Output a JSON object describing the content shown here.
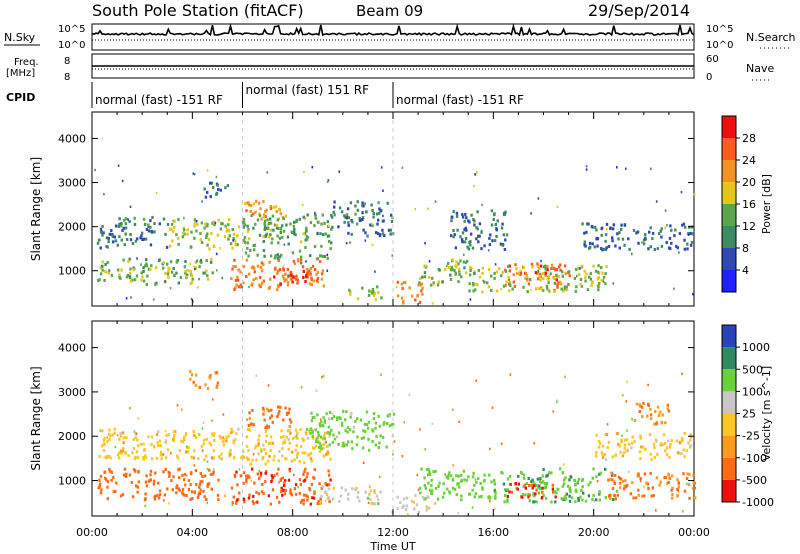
{
  "header": {
    "station": "South Pole Station (fitACF)",
    "beam": "Beam 09",
    "date": "29/Sep/2014"
  },
  "top_panels": {
    "nsky_label": "N.Sky",
    "nsky_ticks": [
      "10^5",
      "10^0"
    ],
    "nsearch_label": "N.Search",
    "nsearch_ticks": [
      "10^5",
      "10^0"
    ],
    "freq_label": "Freq.",
    "freq_unit": "[MHz]",
    "freq_ticks": [
      "8",
      "8"
    ],
    "nave_label": "Nave",
    "nave_ticks": [
      "60",
      "0"
    ],
    "cpid_label": "CPID"
  },
  "cpid_segments": [
    {
      "label": "normal (fast) -151 RF",
      "start_hour": 0,
      "end_hour": 6
    },
    {
      "label": "normal (fast) 151 RF",
      "start_hour": 6,
      "end_hour": 12
    },
    {
      "label": "normal (fast) -151 RF",
      "start_hour": 12,
      "end_hour": 24
    }
  ],
  "time_axis": {
    "title": "Time UT",
    "ticks": [
      "00:00",
      "04:00",
      "08:00",
      "12:00",
      "16:00",
      "20:00",
      "00:00"
    ]
  },
  "colors": {
    "power": [
      "#1f22ff",
      "#2e49b4",
      "#3d8a63",
      "#5aa74b",
      "#e5c61a",
      "#f29222",
      "#ff5a1f",
      "#ee0f0f"
    ],
    "velocity": [
      "#ee0f0f",
      "#ff6a14",
      "#ff9a1f",
      "#ffc726",
      "#c7c7c7",
      "#6bd13a",
      "#2f8a62",
      "#2a43b8"
    ]
  },
  "chart_data": [
    {
      "type": "heatmap",
      "name": "power",
      "ylabel": "Slant Range [km]",
      "yticks": [
        "1000",
        "2000",
        "3000",
        "4000"
      ],
      "ylim": [
        200,
        4600
      ],
      "xlim_hours": [
        0,
        24
      ],
      "colorbar_label": "Power [dB]",
      "colorbar_ticks": [
        "4",
        "8",
        "12",
        "16",
        "20",
        "24",
        "28"
      ],
      "scatter_bands": [
        {
          "t0": 0.1,
          "t1": 3.0,
          "r0": 1550,
          "r1": 2050,
          "value": 8
        },
        {
          "t0": 1.0,
          "t1": 3.0,
          "r0": 2050,
          "r1": 2300,
          "value": 10
        },
        {
          "t0": 0.2,
          "t1": 4.8,
          "r0": 700,
          "r1": 1300,
          "value": 14
        },
        {
          "t0": 3.0,
          "t1": 6.0,
          "r0": 1500,
          "r1": 2200,
          "value": 16
        },
        {
          "t0": 4.4,
          "t1": 5.4,
          "r0": 2700,
          "r1": 3100,
          "value": 8
        },
        {
          "t0": 5.5,
          "t1": 9.2,
          "r0": 600,
          "r1": 1300,
          "value": 24
        },
        {
          "t0": 7.2,
          "t1": 8.6,
          "r0": 700,
          "r1": 1100,
          "value": 28
        },
        {
          "t0": 6.0,
          "t1": 7.6,
          "r0": 2200,
          "r1": 2700,
          "value": 22
        },
        {
          "t0": 6.0,
          "t1": 9.5,
          "r0": 1300,
          "r1": 2300,
          "value": 13
        },
        {
          "t0": 9.5,
          "t1": 12.0,
          "r0": 1800,
          "r1": 2600,
          "value": 9
        },
        {
          "t0": 10.2,
          "t1": 11.5,
          "r0": 350,
          "r1": 700,
          "value": 16
        },
        {
          "t0": 12.1,
          "t1": 13.2,
          "r0": 300,
          "r1": 800,
          "value": 24
        },
        {
          "t0": 13.0,
          "t1": 15.2,
          "r0": 700,
          "r1": 1300,
          "value": 14
        },
        {
          "t0": 14.2,
          "t1": 16.5,
          "r0": 1500,
          "r1": 2400,
          "value": 8
        },
        {
          "t0": 16.3,
          "t1": 19.0,
          "r0": 650,
          "r1": 1200,
          "value": 26
        },
        {
          "t0": 15.0,
          "t1": 20.5,
          "r0": 550,
          "r1": 1150,
          "value": 16
        },
        {
          "t0": 19.5,
          "t1": 23.9,
          "r0": 1500,
          "r1": 2100,
          "value": 8
        }
      ]
    },
    {
      "type": "heatmap",
      "name": "velocity",
      "ylabel": "Slant Range [km]",
      "yticks": [
        "1000",
        "2000",
        "3000",
        "4000"
      ],
      "ylim": [
        200,
        4600
      ],
      "xlim_hours": [
        0,
        24
      ],
      "colorbar_label": "Velocity [m s^-1]",
      "colorbar_ticks": [
        "1000",
        "500",
        "100",
        "25",
        "-25",
        "-100",
        "-500",
        "-1000"
      ],
      "scatter_bands": [
        {
          "t0": 0.2,
          "t1": 6.0,
          "r0": 1500,
          "r1": 2200,
          "value": 0
        },
        {
          "t0": 0.2,
          "t1": 5.0,
          "r0": 600,
          "r1": 1300,
          "value": -300
        },
        {
          "t0": 3.8,
          "t1": 5.0,
          "r0": 3100,
          "r1": 3500,
          "value": -80
        },
        {
          "t0": 6.0,
          "t1": 9.5,
          "r0": 1400,
          "r1": 2200,
          "value": 0
        },
        {
          "t0": 5.5,
          "t1": 9.5,
          "r0": 500,
          "r1": 1300,
          "value": -400
        },
        {
          "t0": 6.2,
          "t1": 8.0,
          "r0": 2200,
          "r1": 2700,
          "value": -200
        },
        {
          "t0": 8.5,
          "t1": 12.0,
          "r0": 1700,
          "r1": 2600,
          "value": 200
        },
        {
          "t0": 9.0,
          "t1": 11.5,
          "r0": 500,
          "r1": 900,
          "value": 60
        },
        {
          "t0": 12.1,
          "t1": 13.5,
          "r0": 300,
          "r1": 700,
          "value": 60
        },
        {
          "t0": 13.0,
          "t1": 16.0,
          "r0": 600,
          "r1": 1300,
          "value": 300
        },
        {
          "t0": 16.0,
          "t1": 21.0,
          "r0": 550,
          "r1": 1300,
          "value": 400
        },
        {
          "t0": 16.5,
          "t1": 18.5,
          "r0": 650,
          "r1": 1000,
          "value": -600
        },
        {
          "t0": 20.5,
          "t1": 24.0,
          "r0": 600,
          "r1": 1200,
          "value": -100
        },
        {
          "t0": 20.0,
          "t1": 23.9,
          "r0": 1500,
          "r1": 2100,
          "value": 0
        },
        {
          "t0": 21.5,
          "t1": 23.0,
          "r0": 2300,
          "r1": 2800,
          "value": -80
        }
      ]
    }
  ]
}
